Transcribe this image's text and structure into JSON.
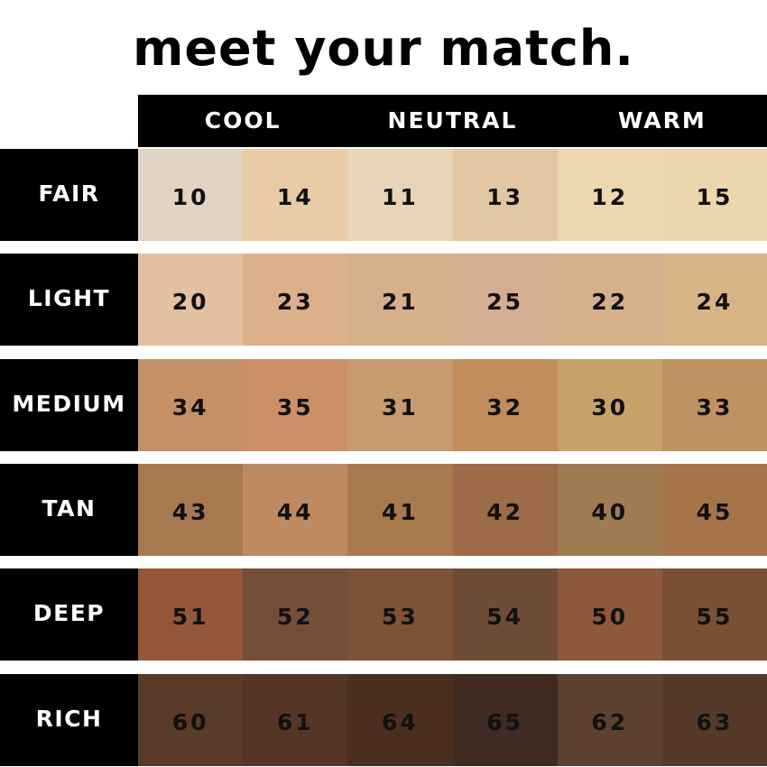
{
  "title": "meet your match.",
  "columns": [
    "COOL",
    "NEUTRAL",
    "WARM"
  ],
  "rows": [
    {
      "label": "FAIR",
      "shades": [
        {
          "code": "10",
          "color": "#e2d4c5"
        },
        {
          "code": "14",
          "color": "#e9cba6"
        },
        {
          "code": "11",
          "color": "#e8d5b8"
        },
        {
          "code": "13",
          "color": "#e2c6a3"
        },
        {
          "code": "12",
          "color": "#ecd7b1"
        },
        {
          "code": "15",
          "color": "#ecd6ae"
        }
      ]
    },
    {
      "label": "LIGHT",
      "shades": [
        {
          "code": "20",
          "color": "#e2c0a0"
        },
        {
          "code": "23",
          "color": "#ddb08c"
        },
        {
          "code": "21",
          "color": "#d6b08b"
        },
        {
          "code": "25",
          "color": "#d3ae8f"
        },
        {
          "code": "22",
          "color": "#d6b08b"
        },
        {
          "code": "24",
          "color": "#d8b587"
        }
      ]
    },
    {
      "label": "MEDIUM",
      "shades": [
        {
          "code": "34",
          "color": "#c49068"
        },
        {
          "code": "35",
          "color": "#cc9068"
        },
        {
          "code": "31",
          "color": "#c89a70"
        },
        {
          "code": "32",
          "color": "#c08c5c"
        },
        {
          "code": "30",
          "color": "#c8a06a"
        },
        {
          "code": "33",
          "color": "#bf9262"
        }
      ]
    },
    {
      "label": "TAN",
      "shades": [
        {
          "code": "43",
          "color": "#a67950"
        },
        {
          "code": "44",
          "color": "#bf8a60"
        },
        {
          "code": "41",
          "color": "#a87a4e"
        },
        {
          "code": "42",
          "color": "#9d6b47"
        },
        {
          "code": "40",
          "color": "#a07a50"
        },
        {
          "code": "45",
          "color": "#a7744a"
        }
      ]
    },
    {
      "label": "DEEP",
      "shades": [
        {
          "code": "51",
          "color": "#94573a"
        },
        {
          "code": "52",
          "color": "#754e38"
        },
        {
          "code": "53",
          "color": "#7e5236"
        },
        {
          "code": "54",
          "color": "#6f4c36"
        },
        {
          "code": "50",
          "color": "#8c5a3a"
        },
        {
          "code": "55",
          "color": "#7a5034"
        }
      ]
    },
    {
      "label": "RICH",
      "shades": [
        {
          "code": "60",
          "color": "#5a3a28"
        },
        {
          "code": "61",
          "color": "#553626"
        },
        {
          "code": "64",
          "color": "#4a2e20"
        },
        {
          "code": "65",
          "color": "#3e2a20"
        },
        {
          "code": "62",
          "color": "#5e4030"
        },
        {
          "code": "63",
          "color": "#553a2a"
        }
      ]
    }
  ]
}
